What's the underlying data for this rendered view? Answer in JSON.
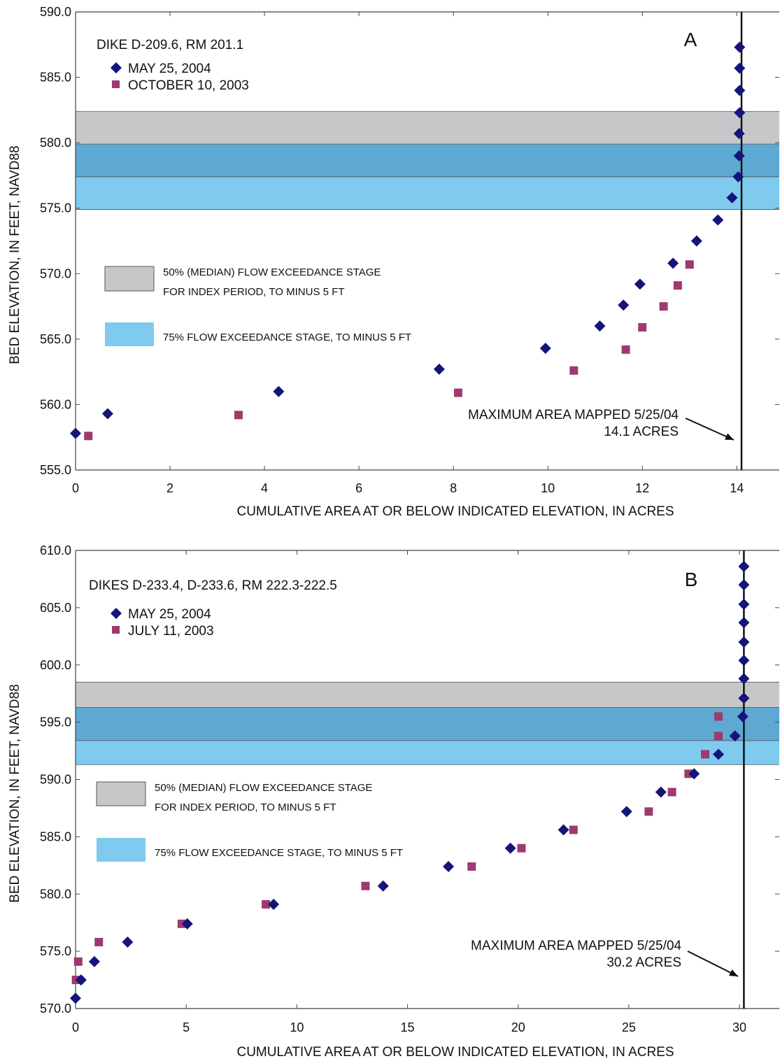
{
  "chart_data": [
    {
      "type": "scatter",
      "panel_letter": "A",
      "site_label": "DIKE D-209.6, RM 201.1",
      "xlabel": "CUMULATIVE AREA AT OR BELOW INDICATED ELEVATION, IN ACRES",
      "ylabel": "BED ELEVATION, IN FEET, NAVD88",
      "xlim": [
        0,
        14.9
      ],
      "ylim": [
        555,
        590
      ],
      "x_ticks": [
        0,
        2,
        4,
        6,
        8,
        10,
        12,
        14
      ],
      "x_tick_labels": [
        "0",
        "2",
        "4",
        "6",
        "8",
        "10",
        "12",
        "14"
      ],
      "y_ticks": [
        555,
        560,
        565,
        570,
        575,
        580,
        585,
        590
      ],
      "y_tick_labels": [
        "555.0",
        "560.0",
        "565.0",
        "570.0",
        "575.0",
        "580.0",
        "585.0",
        "590.0"
      ],
      "bands": [
        {
          "name": "50% (MEDIAN) FLOW EXCEEDANCE STAGE",
          "y_range": [
            577.4,
            582.4
          ],
          "color": "#c6c7c9"
        },
        {
          "name": "75% FLOW EXCEEDANCE STAGE",
          "y_range": [
            574.9,
            579.9
          ],
          "color": "#7fcaef"
        }
      ],
      "band_overlap_color": "#5ea9d2",
      "legend_bands": [
        {
          "line1": "50% (MEDIAN) FLOW EXCEEDANCE STAGE",
          "line2": "FOR INDEX PERIOD, TO MINUS 5 FT",
          "color": "#c6c7c9"
        },
        {
          "line1": "75% FLOW EXCEEDANCE STAGE, TO MINUS 5 FT",
          "line2": "",
          "color": "#7fcaef"
        }
      ],
      "series": [
        {
          "name": "MAY 25, 2004",
          "marker": "diamond",
          "color": "#14147a",
          "points": [
            [
              0,
              557.8
            ],
            [
              0.68,
              559.3
            ],
            [
              4.3,
              561.0
            ],
            [
              7.7,
              562.7
            ],
            [
              9.95,
              564.3
            ],
            [
              11.1,
              566.0
            ],
            [
              11.6,
              567.6
            ],
            [
              11.95,
              569.2
            ],
            [
              12.65,
              570.8
            ],
            [
              13.15,
              572.5
            ],
            [
              13.6,
              574.1
            ],
            [
              13.9,
              575.8
            ],
            [
              14.03,
              577.4
            ],
            [
              14.05,
              579.0
            ],
            [
              14.05,
              580.7
            ],
            [
              14.06,
              582.3
            ],
            [
              14.06,
              584.0
            ],
            [
              14.06,
              585.7
            ],
            [
              14.06,
              587.3
            ]
          ]
        },
        {
          "name": "OCTOBER 10, 2003",
          "marker": "square",
          "color": "#9e3a6e",
          "points": [
            [
              0.27,
              557.6
            ],
            [
              3.45,
              559.2
            ],
            [
              8.1,
              560.9
            ],
            [
              10.55,
              562.6
            ],
            [
              11.65,
              564.2
            ],
            [
              12.0,
              565.9
            ],
            [
              12.45,
              567.5
            ],
            [
              12.75,
              569.1
            ],
            [
              13.0,
              570.7
            ]
          ]
        }
      ],
      "max_line_x": 14.1,
      "annotation": {
        "line1": "MAXIMUM AREA MAPPED 5/25/04",
        "line2": "14.1 ACRES"
      }
    },
    {
      "type": "scatter",
      "panel_letter": "B",
      "site_label": "DIKES D-233.4, D-233.6, RM 222.3-222.5",
      "xlabel": "CUMULATIVE AREA AT OR BELOW INDICATED ELEVATION, IN ACRES",
      "ylabel": "BED ELEVATION, IN FEET, NAVD88",
      "xlim": [
        0,
        31.8
      ],
      "ylim": [
        570,
        610
      ],
      "x_ticks": [
        0,
        5,
        10,
        15,
        20,
        25,
        30
      ],
      "x_tick_labels": [
        "0",
        "5",
        "10",
        "15",
        "20",
        "25",
        "30"
      ],
      "y_ticks": [
        570,
        575,
        580,
        585,
        590,
        595,
        600,
        605,
        610
      ],
      "y_tick_labels": [
        "570.0",
        "575.0",
        "580.0",
        "585.0",
        "590.0",
        "595.0",
        "600.0",
        "605.0",
        "610.0"
      ],
      "bands": [
        {
          "name": "50% (MEDIAN) FLOW EXCEEDANCE STAGE",
          "y_range": [
            593.4,
            598.5
          ],
          "color": "#c6c7c9"
        },
        {
          "name": "75% FLOW EXCEEDANCE STAGE",
          "y_range": [
            591.3,
            596.3
          ],
          "color": "#7fcaef"
        }
      ],
      "band_overlap_color": "#5ea9d2",
      "legend_bands": [
        {
          "line1": "50% (MEDIAN) FLOW EXCEEDANCE STAGE",
          "line2": "FOR INDEX PERIOD, TO MINUS 5 FT",
          "color": "#c6c7c9"
        },
        {
          "line1": "75% FLOW EXCEEDANCE STAGE, TO MINUS 5 FT",
          "line2": "",
          "color": "#7fcaef"
        }
      ],
      "series": [
        {
          "name": "MAY 25, 2004",
          "marker": "diamond",
          "color": "#14147a",
          "points": [
            [
              0,
              570.9
            ],
            [
              0.25,
              572.5
            ],
            [
              0.85,
              574.1
            ],
            [
              2.35,
              575.8
            ],
            [
              5.05,
              577.4
            ],
            [
              8.95,
              579.1
            ],
            [
              13.9,
              580.7
            ],
            [
              16.85,
              582.4
            ],
            [
              19.65,
              584.0
            ],
            [
              22.05,
              585.6
            ],
            [
              24.9,
              587.2
            ],
            [
              26.45,
              588.9
            ],
            [
              27.95,
              590.5
            ],
            [
              29.05,
              592.2
            ],
            [
              29.8,
              593.8
            ],
            [
              30.15,
              595.5
            ],
            [
              30.2,
              597.1
            ],
            [
              30.2,
              598.8
            ],
            [
              30.2,
              600.4
            ],
            [
              30.2,
              602.0
            ],
            [
              30.2,
              603.7
            ],
            [
              30.2,
              605.3
            ],
            [
              30.2,
              607.0
            ],
            [
              30.2,
              608.6
            ]
          ]
        },
        {
          "name": "JULY 11, 2003",
          "marker": "square",
          "color": "#9e3a6e",
          "points": [
            [
              0.02,
              572.5
            ],
            [
              0.12,
              574.1
            ],
            [
              1.05,
              575.8
            ],
            [
              4.8,
              577.4
            ],
            [
              8.6,
              579.1
            ],
            [
              13.1,
              580.7
            ],
            [
              17.9,
              582.4
            ],
            [
              20.15,
              584.0
            ],
            [
              22.5,
              585.6
            ],
            [
              25.9,
              587.2
            ],
            [
              26.95,
              588.9
            ],
            [
              27.7,
              590.5
            ],
            [
              28.45,
              592.2
            ],
            [
              29.05,
              593.8
            ],
            [
              29.05,
              595.5
            ]
          ]
        }
      ],
      "max_line_x": 30.2,
      "annotation": {
        "line1": "MAXIMUM AREA MAPPED 5/25/04",
        "line2": "30.2 ACRES"
      }
    }
  ]
}
